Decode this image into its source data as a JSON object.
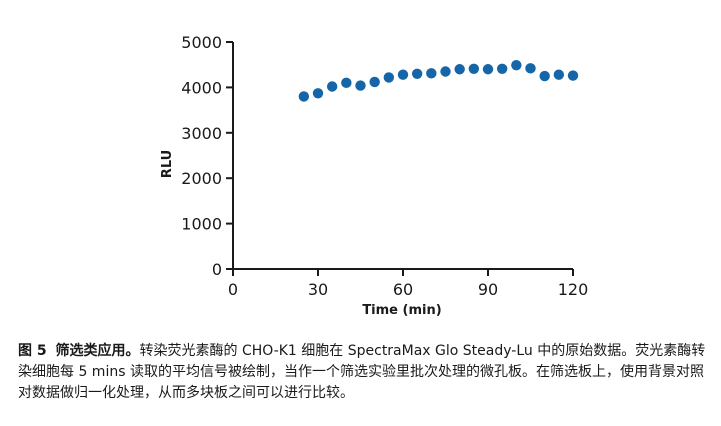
{
  "chart_data": {
    "type": "scatter",
    "xlabel": "Time (min)",
    "ylabel": "RLU",
    "xlim": [
      0,
      120
    ],
    "ylim": [
      0,
      5000
    ],
    "x_ticks": [
      0,
      30,
      60,
      90,
      120
    ],
    "y_ticks": [
      0,
      1000,
      2000,
      3000,
      4000,
      5000
    ],
    "x_tick_labels": [
      "0",
      "30",
      "60",
      "90",
      "120"
    ],
    "y_tick_labels": [
      "0",
      "1000",
      "2000",
      "3000",
      "4000",
      "5000"
    ],
    "marker_color": "#1565a8",
    "grid": false,
    "series": [
      {
        "x": [
          25,
          30,
          35,
          40,
          45,
          50,
          55,
          60,
          65,
          70,
          75,
          80,
          85,
          90,
          95,
          100,
          105,
          110,
          115,
          120
        ],
        "y": [
          3800,
          3870,
          4020,
          4100,
          4040,
          4120,
          4220,
          4280,
          4300,
          4310,
          4350,
          4400,
          4410,
          4400,
          4410,
          4490,
          4420,
          4250,
          4280,
          4260
        ]
      }
    ]
  },
  "caption": {
    "fig_label": "图 5",
    "fig_title": "筛选类应用。",
    "body": "转染荧光素酶的 CHO-K1 细胞在 SpectraMax Glo Steady-Lu 中的原始数据。荧光素酶转染细胞每 5 mins 读取的平均信号被绘制，当作一个筛选实验里批次处理的微孔板。在筛选板上，使用背景对照对数据做归一化处理，从而多块板之间可以进行比较。"
  }
}
